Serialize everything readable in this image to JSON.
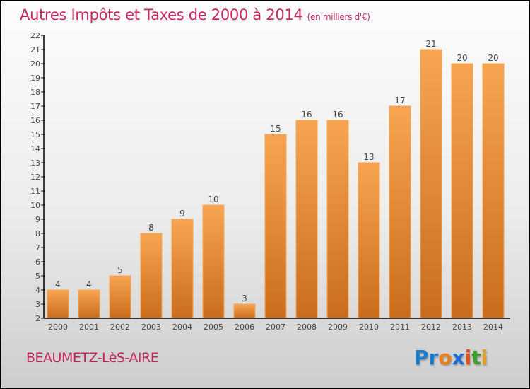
{
  "title": "Autres Impôts et Taxes de 2000 à 2014",
  "unit": "(en milliers d'€)",
  "city": "BEAUMETZ-LèS-AIRE",
  "logo": {
    "letters": [
      "P",
      "r",
      "o",
      "x",
      "i",
      "t",
      "i"
    ],
    "colors": [
      "#1a7fd0",
      "#1a7fd0",
      "#e87f1a",
      "#1a6fd0",
      "#e8501a",
      "#3aa02a",
      "#e8a01a"
    ]
  },
  "colors": {
    "bar_top": "#f7a552",
    "bar_bottom": "#c96d1c"
  },
  "chart_data": {
    "type": "bar",
    "title": "Autres Impôts et Taxes de 2000 à 2014",
    "xlabel": "",
    "ylabel": "",
    "categories": [
      "2000",
      "2001",
      "2002",
      "2003",
      "2004",
      "2005",
      "2006",
      "2007",
      "2008",
      "2009",
      "2010",
      "2011",
      "2012",
      "2013",
      "2014"
    ],
    "values": [
      4,
      4,
      5,
      8,
      9,
      10,
      3,
      15,
      16,
      16,
      13,
      17,
      21,
      20,
      20
    ],
    "ylim": [
      2,
      22
    ],
    "yticks": [
      2,
      3,
      4,
      5,
      6,
      7,
      8,
      9,
      10,
      11,
      12,
      13,
      14,
      15,
      16,
      17,
      18,
      19,
      20,
      21,
      22
    ],
    "grid": false,
    "legend": "none"
  }
}
